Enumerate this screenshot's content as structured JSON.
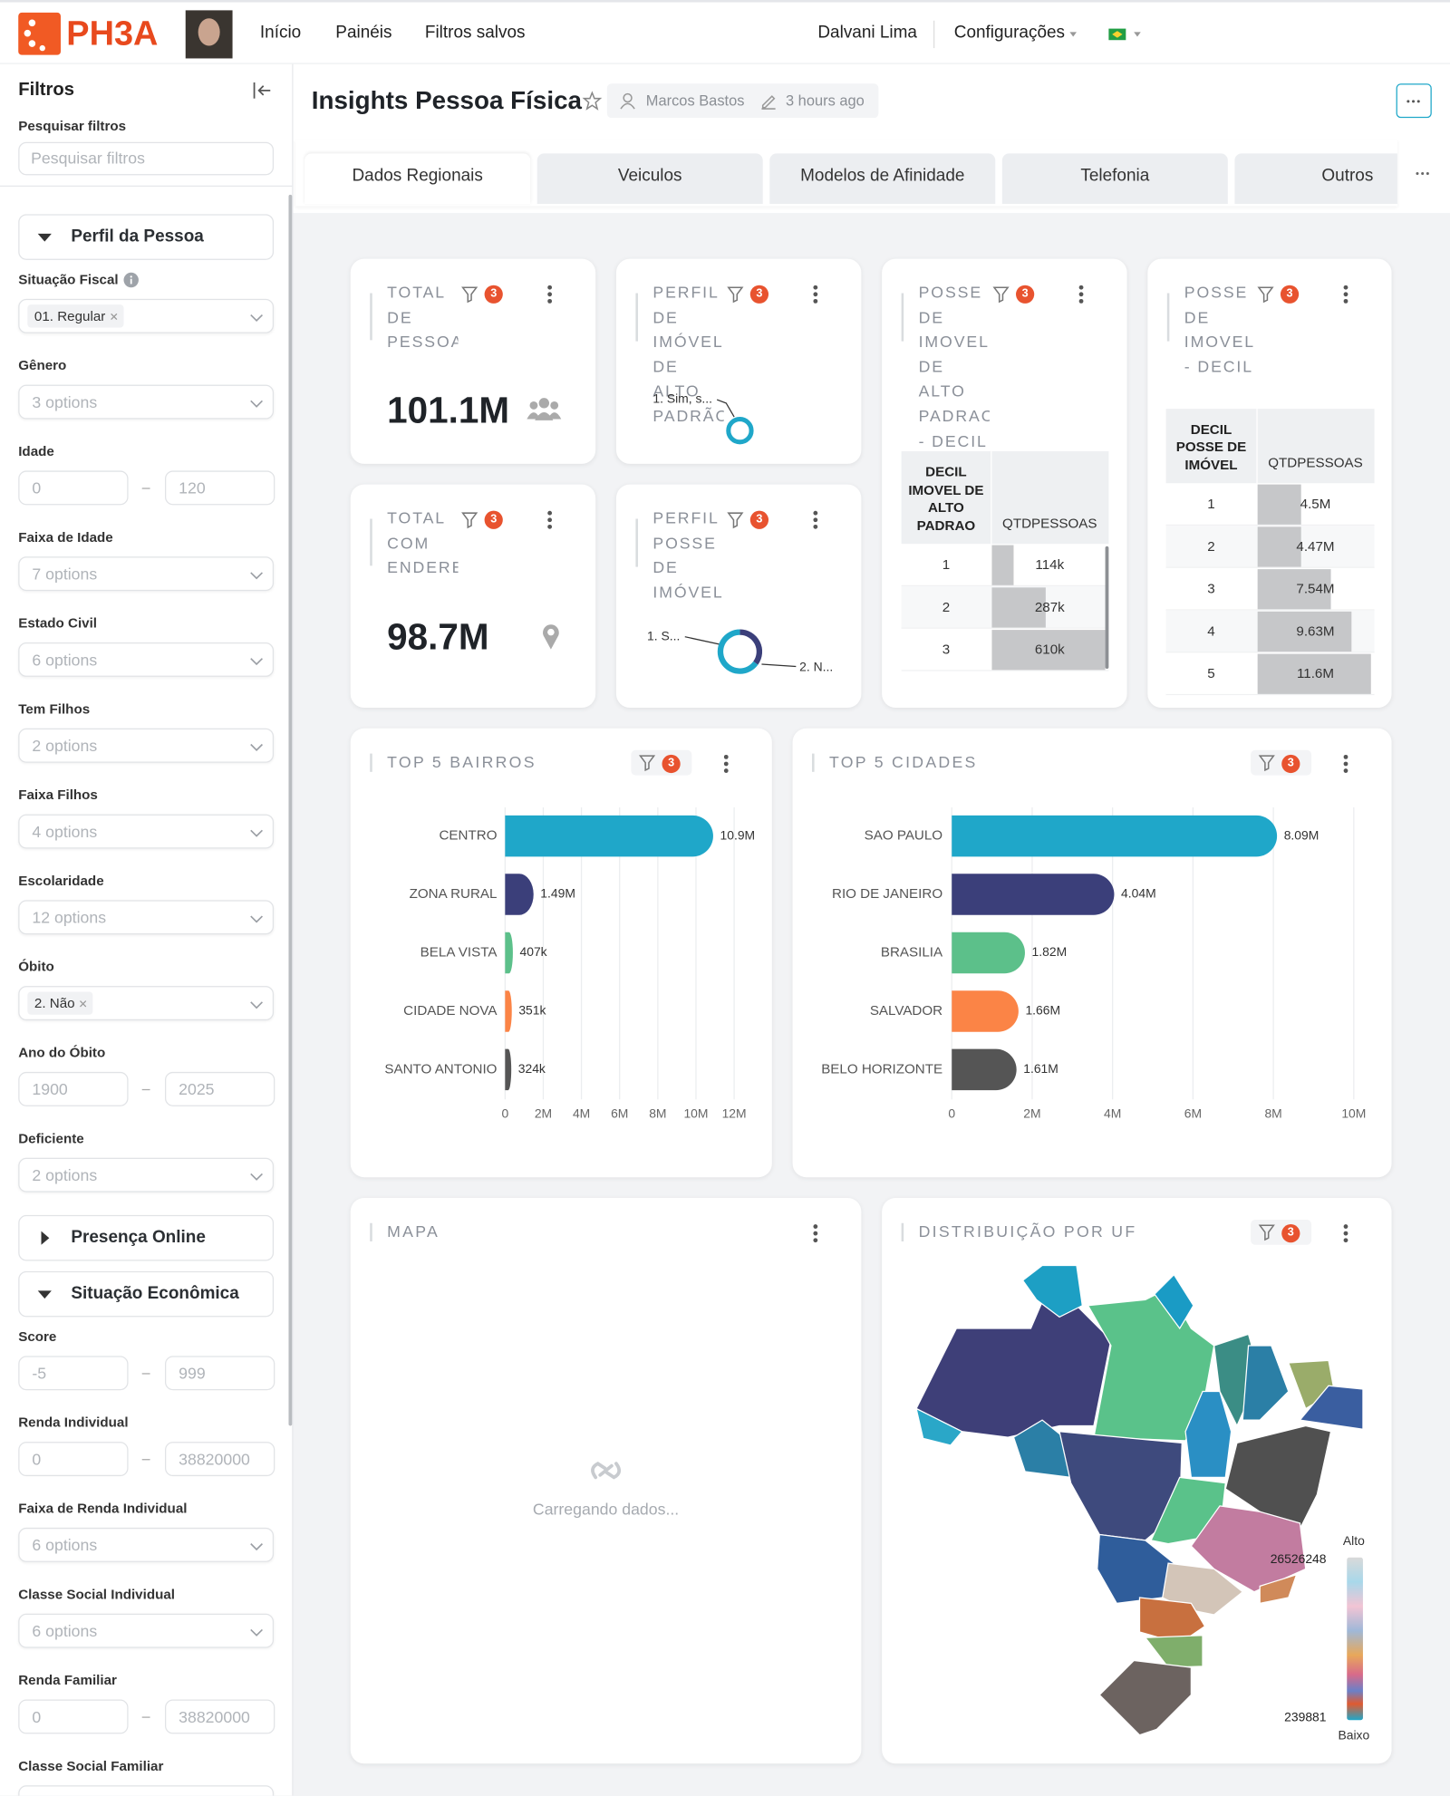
{
  "header": {
    "logo": "PH3A",
    "nav": [
      "Início",
      "Painéis",
      "Filtros salvos"
    ],
    "user": "Dalvani Lima",
    "settings": "Configurações"
  },
  "sidebar": {
    "title": "Filtros",
    "search_label": "Pesquisar filtros",
    "search_placeholder": "Pesquisar filtros",
    "items": [
      {
        "kind": "section",
        "label": "Perfil da Pessoa",
        "open": true
      },
      {
        "kind": "select",
        "label": "Situação Fiscal",
        "tag": "01. Regular",
        "info": true
      },
      {
        "kind": "select",
        "label": "Gênero",
        "placeholder": "3 options"
      },
      {
        "kind": "range",
        "label": "Idade",
        "min": "0",
        "max": "120"
      },
      {
        "kind": "select",
        "label": "Faixa de Idade",
        "placeholder": "7 options"
      },
      {
        "kind": "select",
        "label": "Estado Civil",
        "placeholder": "6 options"
      },
      {
        "kind": "select",
        "label": "Tem Filhos",
        "placeholder": "2 options"
      },
      {
        "kind": "select",
        "label": "Faixa Filhos",
        "placeholder": "4 options"
      },
      {
        "kind": "select",
        "label": "Escolaridade",
        "placeholder": "12 options"
      },
      {
        "kind": "select",
        "label": "Óbito",
        "tag": "2. Não"
      },
      {
        "kind": "range",
        "label": "Ano do Óbito",
        "min": "1900",
        "max": "2025"
      },
      {
        "kind": "select",
        "label": "Deficiente",
        "placeholder": "2 options"
      },
      {
        "kind": "section",
        "label": "Presença Online",
        "open": false
      },
      {
        "kind": "section",
        "label": "Situação Econômica",
        "open": true
      },
      {
        "kind": "range",
        "label": "Score",
        "min": "-5",
        "max": "999"
      },
      {
        "kind": "range",
        "label": "Renda Individual",
        "min": "0",
        "max": "38820000"
      },
      {
        "kind": "select",
        "label": "Faixa de Renda Individual",
        "placeholder": "6 options"
      },
      {
        "kind": "select",
        "label": "Classe Social Individual",
        "placeholder": "6 options"
      },
      {
        "kind": "range",
        "label": "Renda Familiar",
        "min": "0",
        "max": "38820000"
      },
      {
        "kind": "select",
        "label": "Classe Social Familiar"
      }
    ]
  },
  "page": {
    "title": "Insights Pessoa Física",
    "author": "Marcos Bastos",
    "edited": "3 hours ago",
    "tabs": [
      "Dados Regionais",
      "Veiculos",
      "Modelos de Afinidade",
      "Telefonia",
      "Outros"
    ],
    "active_tab": 0
  },
  "cards": {
    "kpis": [
      {
        "title": "TOTAL DE PESSOAS",
        "badge": 3,
        "value": "101.1M"
      },
      {
        "title": "TOTAL COM ENDEREÇO",
        "badge": 3,
        "value": "98.7M"
      }
    ],
    "tables": [
      {
        "title": "POSSE DE IMOVEL DE ALTO PADRAO - DECIL",
        "badge": 3,
        "columns": [
          "DECIL IMOVEL DE ALTO PADRAO",
          "QTDPESSOAS"
        ],
        "rows": [
          [
            "1",
            "114k"
          ],
          [
            "2",
            "287k"
          ],
          [
            "3",
            "610k"
          ]
        ],
        "values": [
          114000,
          287000,
          610000
        ]
      },
      {
        "title": "POSSE DE IMOVEL - DECIL",
        "badge": 3,
        "columns": [
          "DECIL POSSE DE IMÓVEL",
          "QTDPESSOAS"
        ],
        "rows": [
          [
            "1",
            "4.5M"
          ],
          [
            "2",
            "4.47M"
          ],
          [
            "3",
            "7.54M"
          ],
          [
            "4",
            "9.63M"
          ],
          [
            "5",
            "11.6M"
          ]
        ],
        "values": [
          4500000,
          4470000,
          7540000,
          9630000,
          11600000
        ]
      }
    ],
    "map": {
      "title": "MAPA",
      "loading": "Carregando dados..."
    },
    "uf": {
      "title": "DISTRIBUIÇÃO POR UF",
      "badge": 3,
      "legend_high": "Alto",
      "legend_low": "Baixo",
      "max": 26526248,
      "min": 239881
    }
  },
  "chart_data": [
    {
      "type": "pie",
      "title": "PERFIL DE IMÓVEL DE ALTO PADRÃO",
      "badge": 3,
      "categories": [
        "1. Sim, s..."
      ],
      "values": [
        100
      ],
      "colors": [
        "#1fa7c9"
      ]
    },
    {
      "type": "pie",
      "title": "PERFIL POSSE DE IMÓVEL",
      "badge": 3,
      "categories": [
        "1. S...",
        "2. N..."
      ],
      "values": [
        35,
        65
      ],
      "colors": [
        "#3b3f7a",
        "#1fa7c9"
      ]
    },
    {
      "type": "bar",
      "title": "TOP 5 BAIRROS",
      "badge": 3,
      "categories": [
        "CENTRO",
        "ZONA RURAL",
        "BELA VISTA",
        "CIDADE NOVA",
        "SANTO ANTONIO"
      ],
      "values": [
        10900000,
        1490000,
        407000,
        351000,
        324000
      ],
      "value_labels": [
        "10.9M",
        "1.49M",
        "407k",
        "351k",
        "324k"
      ],
      "colors": [
        "#1fa7c9",
        "#3b3f7a",
        "#5cc08a",
        "#fb8446",
        "#555555"
      ],
      "xlim": [
        0,
        12000000
      ],
      "xticks": [
        0,
        {
          "value": 2000000,
          "label": "2M"
        },
        {
          "value": 4000000,
          "label": "4M"
        },
        {
          "value": 6000000,
          "label": "6M"
        },
        {
          "value": 8000000,
          "label": "8M"
        },
        {
          "value": 10000000,
          "label": "10M"
        },
        {
          "value": 12000000,
          "label": "12M"
        }
      ],
      "grid": true
    },
    {
      "type": "bar",
      "title": "TOP 5 CIDADES",
      "badge": 3,
      "categories": [
        "SAO PAULO",
        "RIO DE JANEIRO",
        "BRASILIA",
        "SALVADOR",
        "BELO HORIZONTE"
      ],
      "values": [
        8090000,
        4040000,
        1820000,
        1660000,
        1610000
      ],
      "value_labels": [
        "8.09M",
        "4.04M",
        "1.82M",
        "1.66M",
        "1.61M"
      ],
      "colors": [
        "#1fa7c9",
        "#3b3f7a",
        "#5cc08a",
        "#fb8446",
        "#555555"
      ],
      "xlim": [
        0,
        10000000
      ],
      "xticks": [
        0,
        {
          "value": 2000000,
          "label": "2M"
        },
        {
          "value": 4000000,
          "label": "4M"
        },
        {
          "value": 6000000,
          "label": "6M"
        },
        {
          "value": 8000000,
          "label": "8M"
        },
        {
          "value": 10000000,
          "label": "10M"
        }
      ],
      "grid": true
    }
  ]
}
